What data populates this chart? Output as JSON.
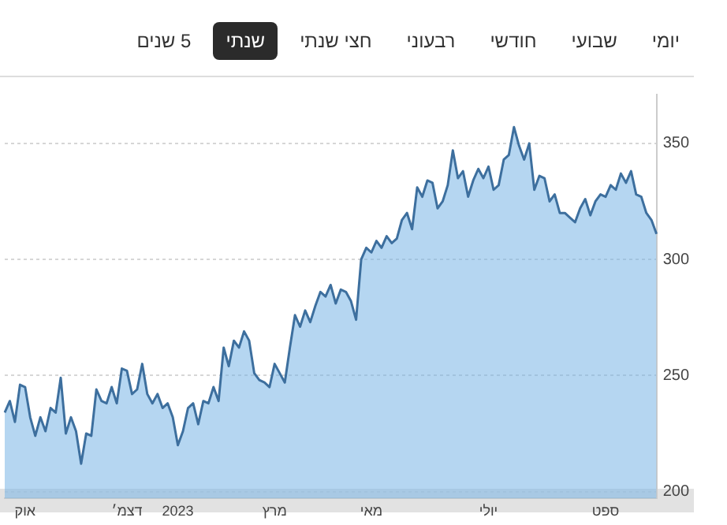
{
  "chart_data": {
    "type": "area",
    "annotations": [
      "יומי",
      "שבועי",
      "חודשי",
      "רבעוני",
      "חצי שנתי",
      "שנתי",
      "5 שנים"
    ],
    "categories": [
      null,
      null,
      null,
      null,
      "אוק",
      null,
      null,
      null,
      null,
      null,
      null,
      null,
      null,
      null,
      null,
      null,
      null,
      null,
      null,
      null,
      null,
      null,
      null,
      null,
      "דצמ׳",
      null,
      null,
      null,
      null,
      null,
      null,
      null,
      null,
      null,
      "2023",
      null,
      null,
      null,
      null,
      null,
      null,
      null,
      null,
      null,
      null,
      null,
      null,
      null,
      null,
      null,
      null,
      null,
      null,
      "מרץ",
      null,
      null,
      null,
      null,
      null,
      null,
      null,
      null,
      null,
      null,
      null,
      null,
      null,
      null,
      null,
      null,
      null,
      null,
      "מאי",
      null,
      null,
      null,
      null,
      null,
      null,
      null,
      null,
      null,
      null,
      null,
      null,
      null,
      null,
      null,
      null,
      null,
      null,
      null,
      null,
      null,
      null,
      "יולי",
      null,
      null,
      null,
      null,
      null,
      null,
      null,
      null,
      null,
      null,
      null,
      null,
      null,
      null,
      null,
      null,
      null,
      null,
      null,
      null,
      null,
      null,
      "ספט",
      null,
      null,
      null,
      null,
      null,
      null,
      null,
      null,
      null,
      null
    ],
    "series": [
      {
        "color": "#3d6f9e",
        "values": [
          234,
          239,
          230,
          246,
          245,
          232,
          224,
          232,
          226,
          236,
          234,
          249,
          225,
          232,
          226,
          212,
          225,
          224,
          244,
          239,
          238,
          245,
          238,
          253,
          252,
          242,
          244,
          255,
          242,
          238,
          242,
          236,
          238,
          232,
          220,
          226,
          236,
          238,
          229,
          239,
          238,
          245,
          239,
          262,
          254,
          265,
          262,
          269,
          265,
          251,
          248,
          247,
          245,
          255,
          251,
          247,
          262,
          276,
          271,
          278,
          273,
          280,
          286,
          284,
          289,
          281,
          287,
          286,
          282,
          274,
          300,
          305,
          303,
          308,
          305,
          310,
          307,
          309,
          317,
          320,
          313,
          331,
          327,
          334,
          333,
          322,
          325,
          332,
          347,
          335,
          338,
          327,
          334,
          339,
          335,
          340,
          330,
          332,
          343,
          345,
          357,
          349,
          343,
          350,
          330,
          336,
          335,
          325,
          328,
          320,
          320,
          318,
          316,
          322,
          326,
          319,
          325,
          328,
          327,
          332,
          330,
          337,
          333,
          338,
          328,
          327,
          320,
          317,
          311
        ]
      }
    ],
    "ylim": [
      197,
      371
    ],
    "yticks": [
      200,
      250,
      300,
      350
    ],
    "grid": "y",
    "legend": false
  }
}
